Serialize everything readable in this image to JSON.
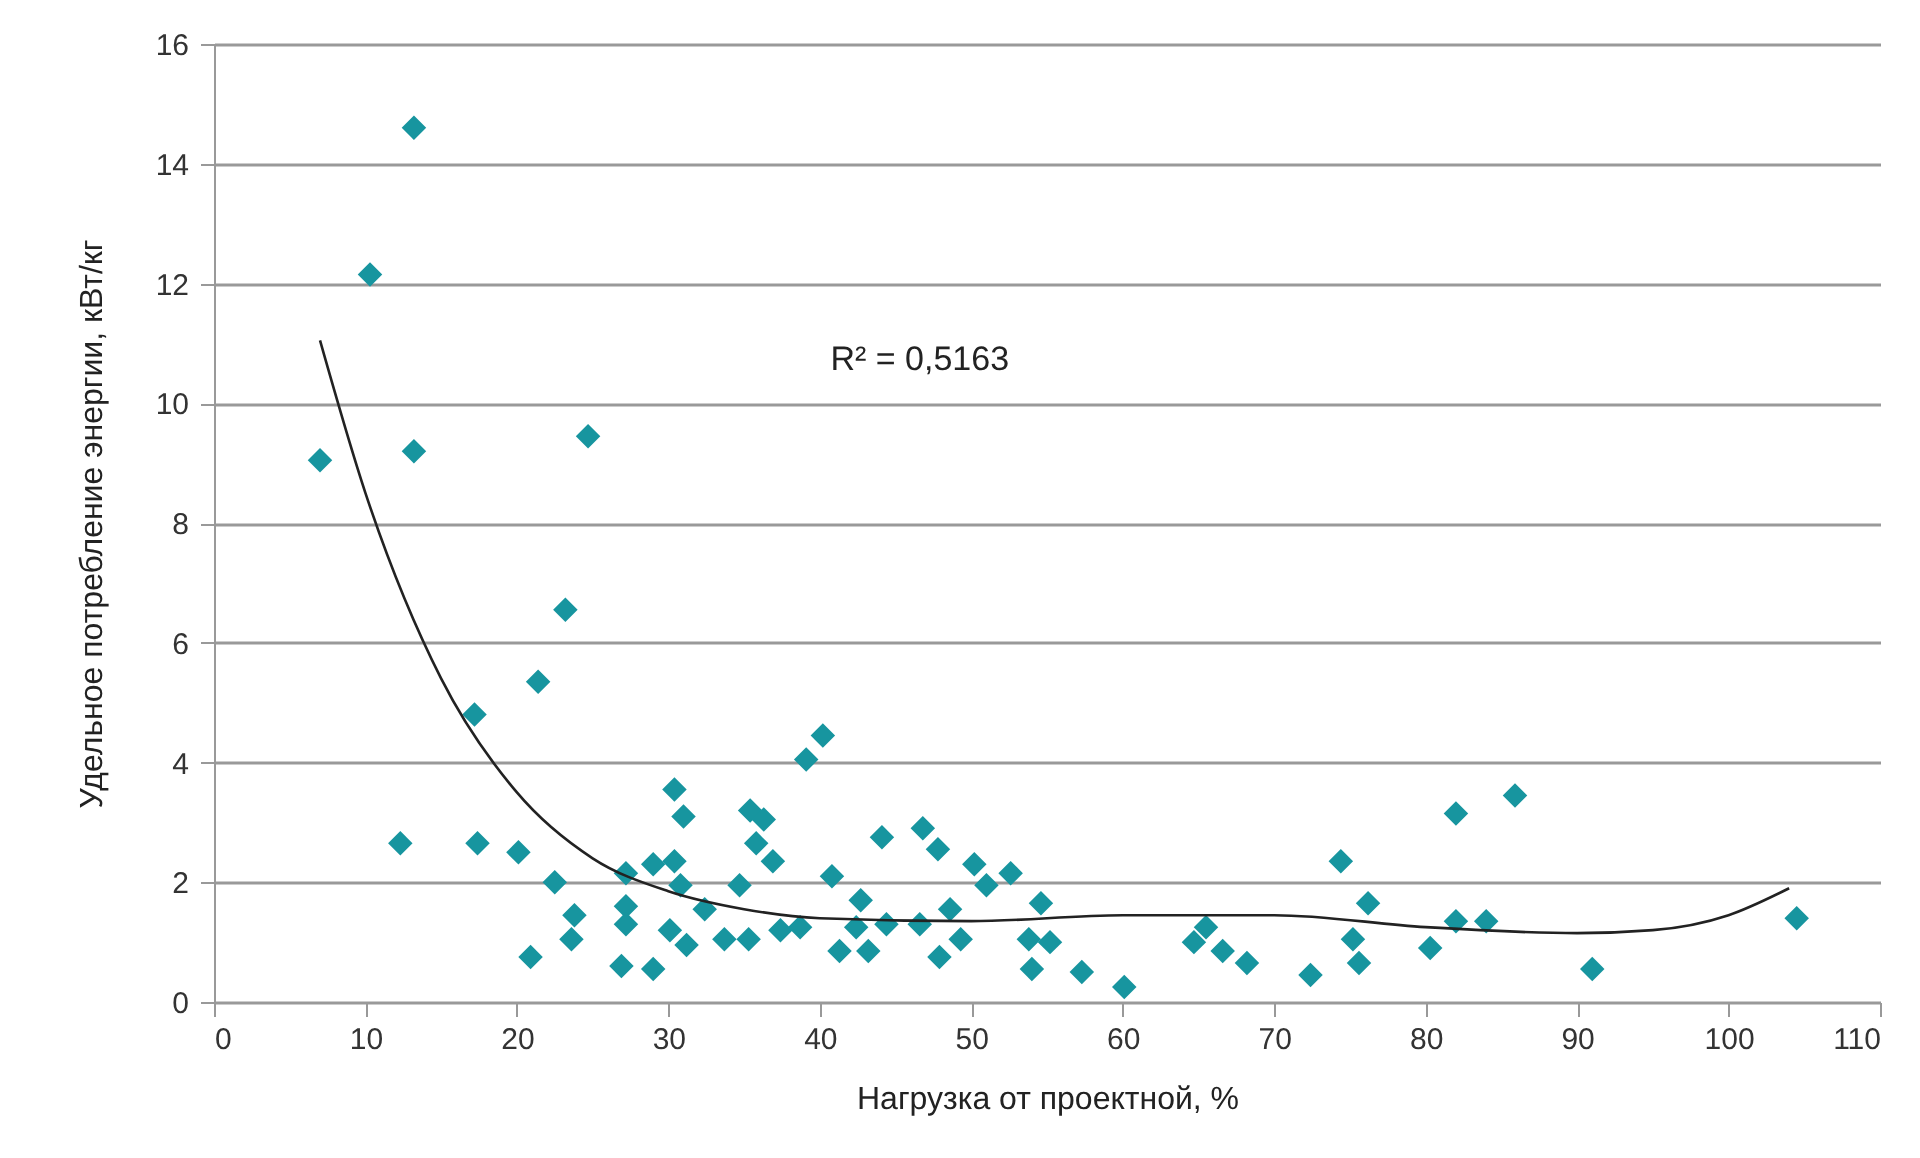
{
  "chart_data": {
    "type": "scatter",
    "xlabel": "Нагрузка от проектной, %",
    "ylabel": "Удельное потребление энергии, кВт/кг",
    "xlim": [
      0,
      110
    ],
    "xticks": [
      0,
      10,
      20,
      30,
      40,
      50,
      60,
      70,
      80,
      90,
      100,
      110
    ],
    "ylim": [
      0,
      16
    ],
    "yticks": [
      0,
      2,
      4,
      6,
      8,
      10,
      12,
      14,
      16
    ],
    "grid": "y",
    "marker": "diamond",
    "annotations": [
      "R² = 0,5163"
    ],
    "series": [
      {
        "color": "#17959f",
        "x": [
          7.0,
          10.3,
          13.2,
          13.2,
          24.7,
          23.2,
          21.4,
          17.2,
          12.3,
          17.4,
          20.1,
          20.9,
          22.5,
          23.8,
          23.6,
          27.2,
          27.2,
          27.2,
          26.9,
          29.0,
          29.0,
          30.4,
          31.0,
          30.4,
          30.8,
          30.1,
          31.2,
          32.4,
          33.7,
          34.7,
          35.4,
          36.3,
          35.8,
          36.9,
          35.3,
          37.4,
          39.1,
          40.2,
          38.7,
          40.8,
          41.3,
          42.7,
          42.4,
          43.2,
          44.1,
          44.4,
          46.8,
          47.8,
          46.6,
          47.9,
          48.6,
          49.3,
          50.2,
          51.0,
          52.6,
          53.8,
          54.6,
          54.0,
          55.2,
          57.3,
          60.1,
          64.7,
          65.5,
          66.6,
          68.2,
          72.4,
          74.4,
          75.2,
          75.6,
          76.2,
          80.3,
          82.0,
          82.0,
          84.0,
          85.9,
          91.0,
          104.5
        ],
        "values": [
          9.05,
          12.15,
          14.6,
          9.2,
          9.45,
          6.55,
          5.35,
          4.8,
          2.65,
          2.65,
          2.5,
          0.75,
          2.0,
          1.45,
          1.05,
          2.15,
          1.6,
          1.3,
          0.6,
          0.55,
          2.3,
          3.55,
          3.1,
          2.35,
          1.95,
          1.2,
          0.95,
          1.55,
          1.05,
          1.95,
          3.2,
          3.05,
          2.65,
          2.35,
          1.05,
          1.2,
          4.05,
          4.45,
          1.25,
          2.1,
          0.85,
          1.7,
          1.25,
          0.85,
          2.75,
          1.3,
          2.9,
          2.55,
          1.3,
          0.75,
          1.55,
          1.05,
          2.3,
          1.95,
          2.15,
          1.05,
          1.65,
          0.55,
          1.0,
          0.5,
          0.25,
          1.0,
          1.25,
          0.85,
          0.65,
          0.45,
          2.35,
          1.05,
          0.65,
          1.65,
          0.9,
          3.15,
          1.35,
          1.35,
          3.45,
          0.55,
          1.4
        ]
      },
      {
        "type": "line",
        "color": "#222222",
        "marker": "none",
        "x": [
          7,
          10,
          15,
          20,
          25,
          30,
          35,
          40,
          50,
          60,
          70,
          80,
          90,
          95,
          100,
          104
        ],
        "values": [
          11.05,
          8.5,
          5.4,
          3.5,
          2.4,
          1.85,
          1.55,
          1.4,
          1.35,
          1.45,
          1.45,
          1.25,
          1.15,
          1.2,
          1.45,
          1.9
        ]
      }
    ]
  }
}
